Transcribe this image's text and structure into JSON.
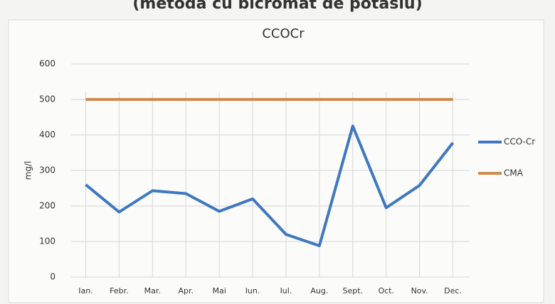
{
  "heading": "(metoda cu bicromat de potasiu)",
  "chart_data": {
    "type": "line",
    "title": "CCOCr",
    "y_label": "mg/l",
    "categories": [
      "Ian.",
      "Febr.",
      "Mar.",
      "Apr.",
      "Mai",
      "Iun.",
      "Iul.",
      "Aug.",
      "Sept.",
      "Oct.",
      "Nov.",
      "Dec."
    ],
    "series": [
      {
        "name": "CCO-Cr",
        "color": "#3f78c0",
        "values": [
          260,
          183,
          243,
          235,
          185,
          220,
          120,
          88,
          425,
          195,
          258,
          378
        ]
      },
      {
        "name": "CMA",
        "color": "#d08a4e",
        "values": [
          500,
          500,
          500,
          500,
          500,
          500,
          500,
          500,
          500,
          500,
          500,
          500
        ]
      }
    ],
    "ylim": [
      0,
      600
    ],
    "yticks": [
      0,
      100,
      200,
      300,
      400,
      500,
      600
    ],
    "grid": true,
    "legend": "right"
  }
}
